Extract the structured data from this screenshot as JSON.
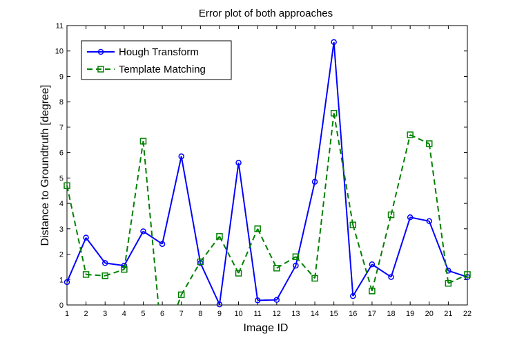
{
  "chart_data": {
    "type": "line",
    "title": "Error plot of both approaches",
    "xlabel": "Image ID",
    "ylabel": "Distance to Groundtruth [degree]",
    "xlim": [
      1,
      22
    ],
    "ylim": [
      0,
      11
    ],
    "x": [
      1,
      2,
      3,
      4,
      5,
      6,
      7,
      8,
      9,
      10,
      11,
      12,
      13,
      14,
      15,
      16,
      17,
      18,
      19,
      20,
      21,
      22
    ],
    "xticks": [
      "1",
      "2",
      "3",
      "4",
      "5",
      "6",
      "7",
      "8",
      "9",
      "10",
      "11",
      "12",
      "13",
      "14",
      "15",
      "16",
      "17",
      "18",
      "19",
      "20",
      "21",
      "22"
    ],
    "yticks": [
      "0",
      "1",
      "2",
      "3",
      "4",
      "5",
      "6",
      "7",
      "8",
      "9",
      "10",
      "11"
    ],
    "grid": false,
    "legend_position": "top-left",
    "series": [
      {
        "name": "Hough Transform",
        "color": "#0000ff",
        "marker": "circle",
        "linestyle": "solid",
        "values": [
          0.9,
          2.65,
          1.65,
          1.55,
          2.9,
          2.4,
          5.85,
          1.65,
          0.02,
          5.6,
          0.18,
          0.2,
          1.55,
          4.85,
          10.35,
          0.35,
          1.6,
          1.1,
          3.45,
          3.3,
          1.35,
          1.1
        ]
      },
      {
        "name": "Template Matching",
        "color": "#008000",
        "marker": "square",
        "linestyle": "dashed",
        "values": [
          4.7,
          1.2,
          1.15,
          1.4,
          6.45,
          null,
          0.4,
          1.7,
          2.7,
          1.25,
          3.0,
          1.45,
          1.9,
          1.05,
          7.55,
          3.15,
          0.55,
          3.55,
          6.7,
          6.35,
          0.85,
          1.2
        ]
      }
    ]
  }
}
